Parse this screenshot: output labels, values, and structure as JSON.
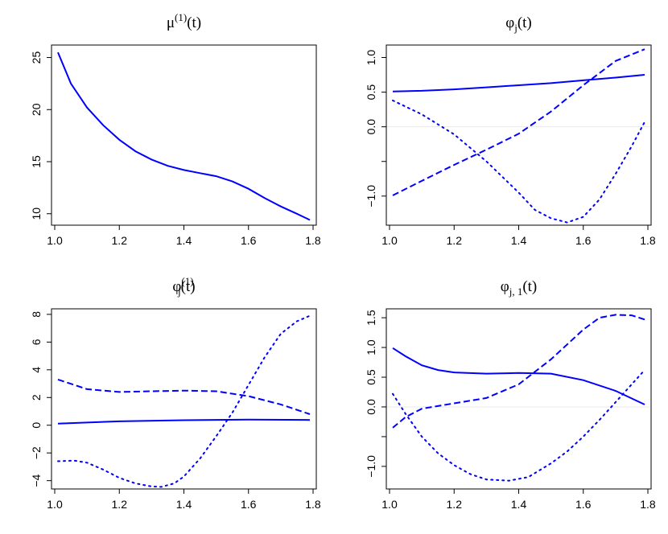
{
  "chart_data": [
    {
      "type": "line",
      "title": {
        "base": "μ",
        "sup": "(1)",
        "sub": "",
        "tail": "(t)"
      },
      "xlim": [
        0.99,
        1.81
      ],
      "ylim": [
        8.9,
        26.2
      ],
      "xticks": [
        1.0,
        1.2,
        1.4,
        1.6,
        1.8
      ],
      "xtick_labels": [
        "1.0",
        "1.2",
        "1.4",
        "1.6",
        "1.8"
      ],
      "yticks": [
        10,
        15,
        20,
        25
      ],
      "ytick_labels": [
        "10",
        "15",
        "20",
        "25"
      ],
      "zero_line": false,
      "series": [
        {
          "style": "solid",
          "x": [
            1.01,
            1.05,
            1.1,
            1.15,
            1.2,
            1.25,
            1.3,
            1.35,
            1.4,
            1.45,
            1.5,
            1.55,
            1.6,
            1.65,
            1.7,
            1.75,
            1.79
          ],
          "y": [
            25.5,
            22.5,
            20.2,
            18.5,
            17.1,
            16.0,
            15.2,
            14.6,
            14.2,
            13.9,
            13.6,
            13.1,
            12.4,
            11.5,
            10.7,
            10.0,
            9.4
          ]
        }
      ]
    },
    {
      "type": "line",
      "title": {
        "base": "φ",
        "sup": "",
        "sub": "j",
        "tail": "(t)"
      },
      "xlim": [
        0.99,
        1.81
      ],
      "ylim": [
        -1.42,
        1.18
      ],
      "xticks": [
        1.0,
        1.2,
        1.4,
        1.6,
        1.8
      ],
      "xtick_labels": [
        "1.0",
        "1.2",
        "1.4",
        "1.6",
        "1.8"
      ],
      "yticks": [
        -1.0,
        -0.5,
        0.0,
        0.5,
        1.0
      ],
      "ytick_labels": [
        "−1.0",
        "",
        "0.0",
        "0.5",
        "1.0"
      ],
      "zero_line": true,
      "series": [
        {
          "style": "solid",
          "x": [
            1.01,
            1.1,
            1.2,
            1.3,
            1.4,
            1.5,
            1.6,
            1.7,
            1.79
          ],
          "y": [
            0.51,
            0.52,
            0.54,
            0.57,
            0.6,
            0.63,
            0.67,
            0.71,
            0.75
          ]
        },
        {
          "style": "dashed",
          "x": [
            1.01,
            1.1,
            1.2,
            1.3,
            1.4,
            1.5,
            1.6,
            1.7,
            1.79
          ],
          "y": [
            -0.99,
            -0.78,
            -0.55,
            -0.33,
            -0.1,
            0.22,
            0.6,
            0.95,
            1.12
          ]
        },
        {
          "style": "dotted",
          "x": [
            1.01,
            1.1,
            1.2,
            1.3,
            1.4,
            1.45,
            1.5,
            1.55,
            1.6,
            1.65,
            1.7,
            1.75,
            1.79
          ],
          "y": [
            0.38,
            0.18,
            -0.11,
            -0.5,
            -0.95,
            -1.2,
            -1.32,
            -1.38,
            -1.3,
            -1.05,
            -0.68,
            -0.28,
            0.07
          ]
        }
      ]
    },
    {
      "type": "line",
      "title": {
        "base": "φ",
        "sup": "(1)",
        "sub": "j",
        "tail": "(t)"
      },
      "xlim": [
        0.99,
        1.81
      ],
      "ylim": [
        -4.6,
        8.4
      ],
      "xticks": [
        1.0,
        1.2,
        1.4,
        1.6,
        1.8
      ],
      "xtick_labels": [
        "1.0",
        "1.2",
        "1.4",
        "1.6",
        "1.8"
      ],
      "yticks": [
        -4,
        -2,
        0,
        2,
        4,
        6,
        8
      ],
      "ytick_labels": [
        "−4",
        "−2",
        "0",
        "2",
        "4",
        "6",
        "8"
      ],
      "zero_line": false,
      "series": [
        {
          "style": "solid",
          "x": [
            1.01,
            1.2,
            1.4,
            1.6,
            1.79
          ],
          "y": [
            0.12,
            0.28,
            0.36,
            0.4,
            0.38
          ]
        },
        {
          "style": "dashed",
          "x": [
            1.01,
            1.1,
            1.2,
            1.3,
            1.4,
            1.5,
            1.6,
            1.7,
            1.79
          ],
          "y": [
            3.3,
            2.6,
            2.4,
            2.45,
            2.5,
            2.45,
            2.1,
            1.5,
            0.8
          ]
        },
        {
          "style": "dotted",
          "x": [
            1.01,
            1.06,
            1.1,
            1.15,
            1.2,
            1.25,
            1.3,
            1.33,
            1.37,
            1.4,
            1.45,
            1.5,
            1.55,
            1.6,
            1.65,
            1.7,
            1.75,
            1.79
          ],
          "y": [
            -2.6,
            -2.55,
            -2.7,
            -3.2,
            -3.8,
            -4.2,
            -4.42,
            -4.45,
            -4.2,
            -3.7,
            -2.4,
            -0.8,
            0.9,
            2.9,
            4.9,
            6.6,
            7.5,
            7.9
          ]
        }
      ]
    },
    {
      "type": "line",
      "title": {
        "base": "φ",
        "sup": "",
        "sub": "j, 1",
        "tail": "(t)"
      },
      "xlim": [
        0.99,
        1.81
      ],
      "ylim": [
        -1.38,
        1.65
      ],
      "xticks": [
        1.0,
        1.2,
        1.4,
        1.6,
        1.8
      ],
      "xtick_labels": [
        "1.0",
        "1.2",
        "1.4",
        "1.6",
        "1.8"
      ],
      "yticks": [
        -1.0,
        -0.5,
        0.0,
        0.5,
        1.0,
        1.5
      ],
      "ytick_labels": [
        "−1.0",
        "",
        "0.0",
        "0.5",
        "1.0",
        "1.5"
      ],
      "zero_line": true,
      "series": [
        {
          "style": "solid",
          "x": [
            1.01,
            1.05,
            1.1,
            1.15,
            1.2,
            1.3,
            1.4,
            1.5,
            1.6,
            1.7,
            1.79
          ],
          "y": [
            0.99,
            0.85,
            0.7,
            0.62,
            0.58,
            0.56,
            0.57,
            0.56,
            0.45,
            0.27,
            0.04
          ]
        },
        {
          "style": "dashed",
          "x": [
            1.01,
            1.05,
            1.1,
            1.2,
            1.3,
            1.4,
            1.5,
            1.6,
            1.65,
            1.7,
            1.75,
            1.79
          ],
          "y": [
            -0.35,
            -0.17,
            -0.03,
            0.06,
            0.15,
            0.38,
            0.8,
            1.3,
            1.5,
            1.55,
            1.54,
            1.47
          ]
        },
        {
          "style": "dotted",
          "x": [
            1.01,
            1.05,
            1.1,
            1.15,
            1.2,
            1.25,
            1.3,
            1.37,
            1.43,
            1.5,
            1.55,
            1.6,
            1.65,
            1.7,
            1.75,
            1.79
          ],
          "y": [
            0.22,
            -0.12,
            -0.5,
            -0.78,
            -0.98,
            -1.13,
            -1.22,
            -1.24,
            -1.18,
            -0.95,
            -0.75,
            -0.5,
            -0.22,
            0.08,
            0.38,
            0.62
          ]
        }
      ]
    }
  ]
}
